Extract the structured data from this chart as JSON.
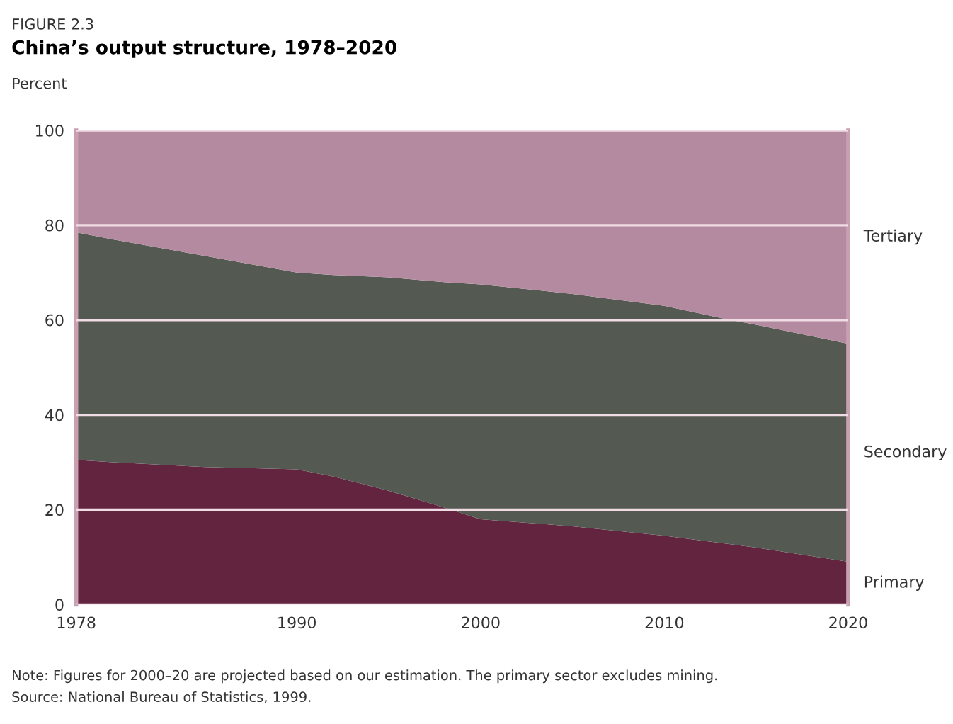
{
  "chart_data": {
    "type": "area",
    "stacked": true,
    "subtitle": "FIGURE 2.3",
    "title": "China’s output structure, 1978–2020",
    "ylabel": "Percent",
    "x": [
      1978,
      1980,
      1985,
      1990,
      1992,
      1995,
      1998,
      2000,
      2005,
      2010,
      2013,
      2015,
      2020
    ],
    "series": [
      {
        "name": "Primary",
        "color": "#632440",
        "values": [
          30.5,
          30,
          29,
          28.5,
          27,
          24,
          20.5,
          18,
          16.5,
          14.5,
          13,
          12,
          9
        ]
      },
      {
        "name": "Secondary",
        "color": "#545a52",
        "values": [
          48,
          47,
          44.5,
          41.5,
          42.5,
          45,
          47.5,
          49.5,
          49,
          48.5,
          47.5,
          47,
          46
        ]
      },
      {
        "name": "Tertiary",
        "color": "#b48aa0",
        "values": [
          21.5,
          23,
          26.5,
          30,
          30.5,
          31,
          32,
          32.5,
          34.5,
          37,
          39.5,
          41,
          45
        ]
      }
    ],
    "xlim": [
      1978,
      2020
    ],
    "xticks": [
      1978,
      1990,
      2000,
      2010,
      2020
    ],
    "ylim": [
      0,
      100
    ],
    "yticks": [
      0,
      20,
      40,
      60,
      80,
      100
    ],
    "grid": "y",
    "legend": false,
    "annotations": [
      "Note: Figures for 2000–20 are projected based on our estimation. The primary sector excludes mining.",
      "Source: National Bureau of Statistics, 1999."
    ]
  }
}
